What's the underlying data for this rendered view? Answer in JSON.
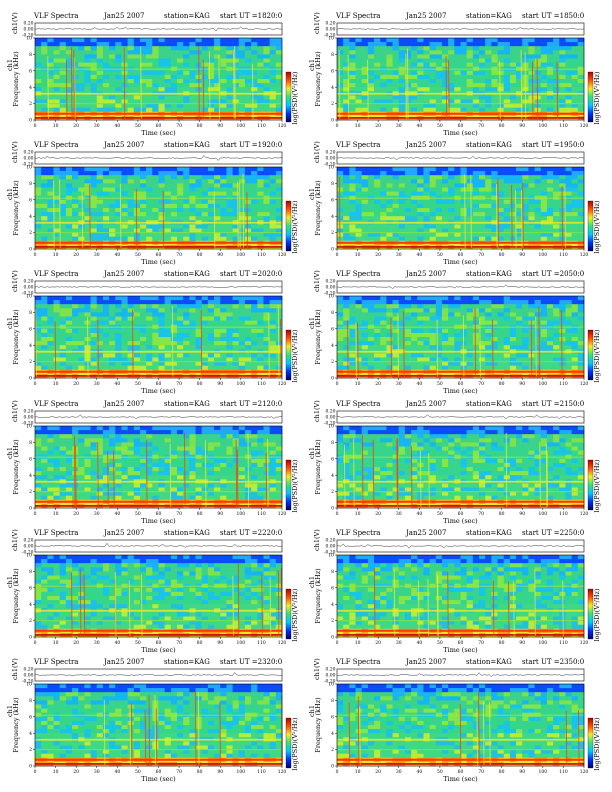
{
  "colors": {
    "background": "#ffffff",
    "colorbar_stops": [
      "#00006e",
      "#0030ff",
      "#00c8ff",
      "#34e07a",
      "#f2ee22",
      "#ff5000",
      "#b40000"
    ]
  },
  "chart_data": [
    {
      "type": "heatmap",
      "title_left": "VLF Spectra",
      "title_date": "Jan25 2007",
      "title_station": "station=KAG",
      "title_start": "start  UT =1820:0",
      "ylabel_top": "ch1(V)",
      "ylabel_main": "ch1\nFrequency (kHz)",
      "xlabel": "Time (sec)",
      "colorbar_label": "log(PSD)(V²/Hz)",
      "xlim": [
        0,
        120
      ],
      "x_ticks": [
        "0",
        "10",
        "20",
        "30",
        "40",
        "50",
        "60",
        "70",
        "80",
        "90",
        "100",
        "110",
        "120"
      ],
      "ylim": [
        0,
        10
      ],
      "y_ticks": [
        "0",
        "2",
        "4",
        "6",
        "8",
        "10"
      ],
      "ch_ticks": [
        "-0.20",
        "0.00",
        "0.20"
      ],
      "grid": false
    },
    {
      "type": "heatmap",
      "title_left": "VLF Spectra",
      "title_date": "Jan25 2007",
      "title_station": "station=KAG",
      "title_start": "start  UT =1850:0",
      "ylabel_top": "ch1(V)",
      "ylabel_main": "ch1\nFrequency (kHz)",
      "xlabel": "Time (sec)",
      "colorbar_label": "log(PSD)(V²/Hz)",
      "xlim": [
        0,
        120
      ],
      "x_ticks": [
        "0",
        "10",
        "20",
        "30",
        "40",
        "50",
        "60",
        "70",
        "80",
        "90",
        "100",
        "110",
        "120"
      ],
      "ylim": [
        0,
        10
      ],
      "y_ticks": [
        "0",
        "2",
        "4",
        "6",
        "8",
        "10"
      ],
      "ch_ticks": [
        "-0.20",
        "0.00",
        "0.20"
      ],
      "grid": false
    },
    {
      "type": "heatmap",
      "title_left": "VLF Spectra",
      "title_date": "Jan25 2007",
      "title_station": "station=KAG",
      "title_start": "start  UT =1920:0",
      "ylabel_top": "ch1(V)",
      "ylabel_main": "ch1\nFrequency (kHz)",
      "xlabel": "Time (sec)",
      "colorbar_label": "log(PSD)(V²/Hz)",
      "xlim": [
        0,
        120
      ],
      "x_ticks": [
        "0",
        "10",
        "20",
        "30",
        "40",
        "50",
        "60",
        "70",
        "80",
        "90",
        "100",
        "110",
        "120"
      ],
      "ylim": [
        0,
        10
      ],
      "y_ticks": [
        "0",
        "2",
        "4",
        "6",
        "8",
        "10"
      ],
      "ch_ticks": [
        "-0.20",
        "0.00",
        "0.20"
      ],
      "grid": false
    },
    {
      "type": "heatmap",
      "title_left": "VLF Spectra",
      "title_date": "Jan25 2007",
      "title_station": "station=KAG",
      "title_start": "start  UT =1950:0",
      "ylabel_top": "ch1(V)",
      "ylabel_main": "ch1\nFrequency (kHz)",
      "xlabel": "Time (sec)",
      "colorbar_label": "log(PSD)(V²/Hz)",
      "xlim": [
        0,
        120
      ],
      "x_ticks": [
        "0",
        "10",
        "20",
        "30",
        "40",
        "50",
        "60",
        "70",
        "80",
        "90",
        "100",
        "110",
        "120"
      ],
      "ylim": [
        0,
        10
      ],
      "y_ticks": [
        "0",
        "2",
        "4",
        "6",
        "8",
        "10"
      ],
      "ch_ticks": [
        "-0.20",
        "0.00",
        "0.20"
      ],
      "grid": false
    },
    {
      "type": "heatmap",
      "title_left": "VLF Spectra",
      "title_date": "Jan25 2007",
      "title_station": "station=KAG",
      "title_start": "start  UT =2020:0",
      "ylabel_top": "ch1(V)",
      "ylabel_main": "ch1\nFrequency (kHz)",
      "xlabel": "Time (sec)",
      "colorbar_label": "log(PSD)(V²/Hz)",
      "xlim": [
        0,
        120
      ],
      "x_ticks": [
        "0",
        "10",
        "20",
        "30",
        "40",
        "50",
        "60",
        "70",
        "80",
        "90",
        "100",
        "110",
        "120"
      ],
      "ylim": [
        0,
        10
      ],
      "y_ticks": [
        "0",
        "2",
        "4",
        "6",
        "8",
        "10"
      ],
      "ch_ticks": [
        "-0.20",
        "0.00",
        "0.20"
      ],
      "grid": false
    },
    {
      "type": "heatmap",
      "title_left": "VLF Spectra",
      "title_date": "Jan25 2007",
      "title_station": "station=KAG",
      "title_start": "start  UT =2050:0",
      "ylabel_top": "ch1(V)",
      "ylabel_main": "ch1\nFrequency (kHz)",
      "xlabel": "Time (sec)",
      "colorbar_label": "log(PSD)(V²/Hz)",
      "xlim": [
        0,
        120
      ],
      "x_ticks": [
        "0",
        "10",
        "20",
        "30",
        "40",
        "50",
        "60",
        "70",
        "80",
        "90",
        "100",
        "110",
        "120"
      ],
      "ylim": [
        0,
        10
      ],
      "y_ticks": [
        "0",
        "2",
        "4",
        "6",
        "8",
        "10"
      ],
      "ch_ticks": [
        "-0.20",
        "0.00",
        "0.20"
      ],
      "grid": false
    },
    {
      "type": "heatmap",
      "title_left": "VLF Spectra",
      "title_date": "Jan25 2007",
      "title_station": "station=KAG",
      "title_start": "start  UT =2120:0",
      "ylabel_top": "ch1(V)",
      "ylabel_main": "ch1\nFrequency (kHz)",
      "xlabel": "Time (sec)",
      "colorbar_label": "log(PSD)(V²/Hz)",
      "xlim": [
        0,
        120
      ],
      "x_ticks": [
        "0",
        "10",
        "20",
        "30",
        "40",
        "50",
        "60",
        "70",
        "80",
        "90",
        "100",
        "110",
        "120"
      ],
      "ylim": [
        0,
        10
      ],
      "y_ticks": [
        "0",
        "2",
        "4",
        "6",
        "8",
        "10"
      ],
      "ch_ticks": [
        "-0.20",
        "0.00",
        "0.20"
      ],
      "grid": false
    },
    {
      "type": "heatmap",
      "title_left": "VLF Spectra",
      "title_date": "Jan25 2007",
      "title_station": "station=KAG",
      "title_start": "start  UT =2150:0",
      "ylabel_top": "ch1(V)",
      "ylabel_main": "ch1\nFrequency (kHz)",
      "xlabel": "Time (sec)",
      "colorbar_label": "log(PSD)(V²/Hz)",
      "xlim": [
        0,
        120
      ],
      "x_ticks": [
        "0",
        "10",
        "20",
        "30",
        "40",
        "50",
        "60",
        "70",
        "80",
        "90",
        "100",
        "110",
        "120"
      ],
      "ylim": [
        0,
        10
      ],
      "y_ticks": [
        "0",
        "2",
        "4",
        "6",
        "8",
        "10"
      ],
      "ch_ticks": [
        "-0.20",
        "0.00",
        "0.20"
      ],
      "grid": false
    },
    {
      "type": "heatmap",
      "title_left": "VLF Spectra",
      "title_date": "Jan25 2007",
      "title_station": "station=KAG",
      "title_start": "start  UT =2220:0",
      "ylabel_top": "ch1(V)",
      "ylabel_main": "ch1\nFrequency (kHz)",
      "xlabel": "Time (sec)",
      "colorbar_label": "log(PSD)(V²/Hz)",
      "xlim": [
        0,
        120
      ],
      "x_ticks": [
        "0",
        "10",
        "20",
        "30",
        "40",
        "50",
        "60",
        "70",
        "80",
        "90",
        "100",
        "110",
        "120"
      ],
      "ylim": [
        0,
        10
      ],
      "y_ticks": [
        "0",
        "2",
        "4",
        "6",
        "8",
        "10"
      ],
      "ch_ticks": [
        "-0.20",
        "0.00",
        "0.20"
      ],
      "grid": false
    },
    {
      "type": "heatmap",
      "title_left": "VLF Spectra",
      "title_date": "Jan25 2007",
      "title_station": "station=KAG",
      "title_start": "start  UT =2250:0",
      "ylabel_top": "ch1(V)",
      "ylabel_main": "ch1\nFrequency (kHz)",
      "xlabel": "Time (sec)",
      "colorbar_label": "log(PSD)(V²/Hz)",
      "xlim": [
        0,
        120
      ],
      "x_ticks": [
        "0",
        "10",
        "20",
        "30",
        "40",
        "50",
        "60",
        "70",
        "80",
        "90",
        "100",
        "110",
        "120"
      ],
      "ylim": [
        0,
        10
      ],
      "y_ticks": [
        "0",
        "2",
        "4",
        "6",
        "8",
        "10"
      ],
      "ch_ticks": [
        "-0.20",
        "0.00",
        "0.20"
      ],
      "grid": false
    },
    {
      "type": "heatmap",
      "title_left": "VLF Spectra",
      "title_date": "Jan25 2007",
      "title_station": "station=KAG",
      "title_start": "start  UT =2320:0",
      "ylabel_top": "ch1(V)",
      "ylabel_main": "ch1\nFrequency (kHz)",
      "xlabel": "Time (sec)",
      "colorbar_label": "log(PSD)(V²/Hz)",
      "xlim": [
        0,
        120
      ],
      "x_ticks": [
        "0",
        "10",
        "20",
        "30",
        "40",
        "50",
        "60",
        "70",
        "80",
        "90",
        "100",
        "110",
        "120"
      ],
      "ylim": [
        0,
        10
      ],
      "y_ticks": [
        "0",
        "2",
        "4",
        "6",
        "8",
        "10"
      ],
      "ch_ticks": [
        "-0.20",
        "0.00",
        "0.20"
      ],
      "grid": false
    },
    {
      "type": "heatmap",
      "title_left": "VLF Spectra",
      "title_date": "Jan25 2007",
      "title_station": "station=KAG",
      "title_start": "start  UT =2350:0",
      "ylabel_top": "ch1(V)",
      "ylabel_main": "ch1\nFrequency (kHz)",
      "xlabel": "Time (sec)",
      "colorbar_label": "log(PSD)(V²/Hz)",
      "xlim": [
        0,
        120
      ],
      "x_ticks": [
        "0",
        "10",
        "20",
        "30",
        "40",
        "50",
        "60",
        "70",
        "80",
        "90",
        "100",
        "110",
        "120"
      ],
      "ylim": [
        0,
        10
      ],
      "y_ticks": [
        "0",
        "2",
        "4",
        "6",
        "8",
        "10"
      ],
      "ch_ticks": [
        "-0.20",
        "0.00",
        "0.20"
      ],
      "grid": false
    }
  ]
}
